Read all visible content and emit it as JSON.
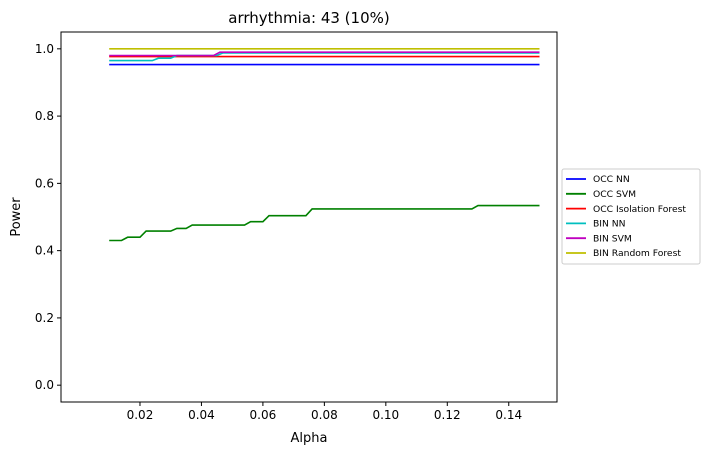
{
  "chart_data": {
    "type": "line",
    "title": "arrhythmia: 43 (10%)",
    "xlabel": "Alpha",
    "ylabel": "Power",
    "xlim": [
      -0.0057,
      0.1557
    ],
    "ylim": [
      -0.05,
      1.05
    ],
    "xticks": [
      {
        "value": 0.02,
        "label": "0.02"
      },
      {
        "value": 0.04,
        "label": "0.04"
      },
      {
        "value": 0.06,
        "label": "0.06"
      },
      {
        "value": 0.08,
        "label": "0.08"
      },
      {
        "value": 0.1,
        "label": "0.10"
      },
      {
        "value": 0.12,
        "label": "0.12"
      },
      {
        "value": 0.14,
        "label": "0.14"
      }
    ],
    "yticks": [
      {
        "value": 0.0,
        "label": "0.0"
      },
      {
        "value": 0.2,
        "label": "0.2"
      },
      {
        "value": 0.4,
        "label": "0.4"
      },
      {
        "value": 0.6,
        "label": "0.6"
      },
      {
        "value": 0.8,
        "label": "0.8"
      },
      {
        "value": 1.0,
        "label": "1.0"
      }
    ],
    "grid": false,
    "legend_position": "outside-right",
    "series": [
      {
        "name": "OCC NN",
        "color": "#0000ff",
        "points": [
          [
            0.01,
            0.953
          ],
          [
            0.15,
            0.953
          ]
        ]
      },
      {
        "name": "OCC SVM",
        "color": "#008000",
        "points": [
          [
            0.01,
            0.43
          ],
          [
            0.014,
            0.43
          ],
          [
            0.016,
            0.44
          ],
          [
            0.02,
            0.44
          ],
          [
            0.022,
            0.458
          ],
          [
            0.03,
            0.458
          ],
          [
            0.032,
            0.466
          ],
          [
            0.035,
            0.466
          ],
          [
            0.037,
            0.476
          ],
          [
            0.054,
            0.476
          ],
          [
            0.056,
            0.486
          ],
          [
            0.06,
            0.486
          ],
          [
            0.062,
            0.504
          ],
          [
            0.074,
            0.504
          ],
          [
            0.076,
            0.524
          ],
          [
            0.128,
            0.524
          ],
          [
            0.13,
            0.534
          ],
          [
            0.15,
            0.534
          ]
        ]
      },
      {
        "name": "OCC Isolation Forest",
        "color": "#ff0000",
        "points": [
          [
            0.01,
            0.977
          ],
          [
            0.15,
            0.977
          ]
        ]
      },
      {
        "name": "BIN NN",
        "color": "#00bfbf",
        "points": [
          [
            0.01,
            0.965
          ],
          [
            0.024,
            0.965
          ],
          [
            0.026,
            0.972
          ],
          [
            0.03,
            0.972
          ],
          [
            0.032,
            0.98
          ],
          [
            0.045,
            0.98
          ],
          [
            0.047,
            0.988
          ],
          [
            0.15,
            0.988
          ]
        ]
      },
      {
        "name": "BIN SVM",
        "color": "#bf00bf",
        "points": [
          [
            0.01,
            0.98
          ],
          [
            0.044,
            0.98
          ],
          [
            0.046,
            0.99
          ],
          [
            0.15,
            0.99
          ]
        ]
      },
      {
        "name": "BIN Random Forest",
        "color": "#bfbf00",
        "points": [
          [
            0.01,
            1.0
          ],
          [
            0.15,
            1.0
          ]
        ]
      }
    ]
  }
}
